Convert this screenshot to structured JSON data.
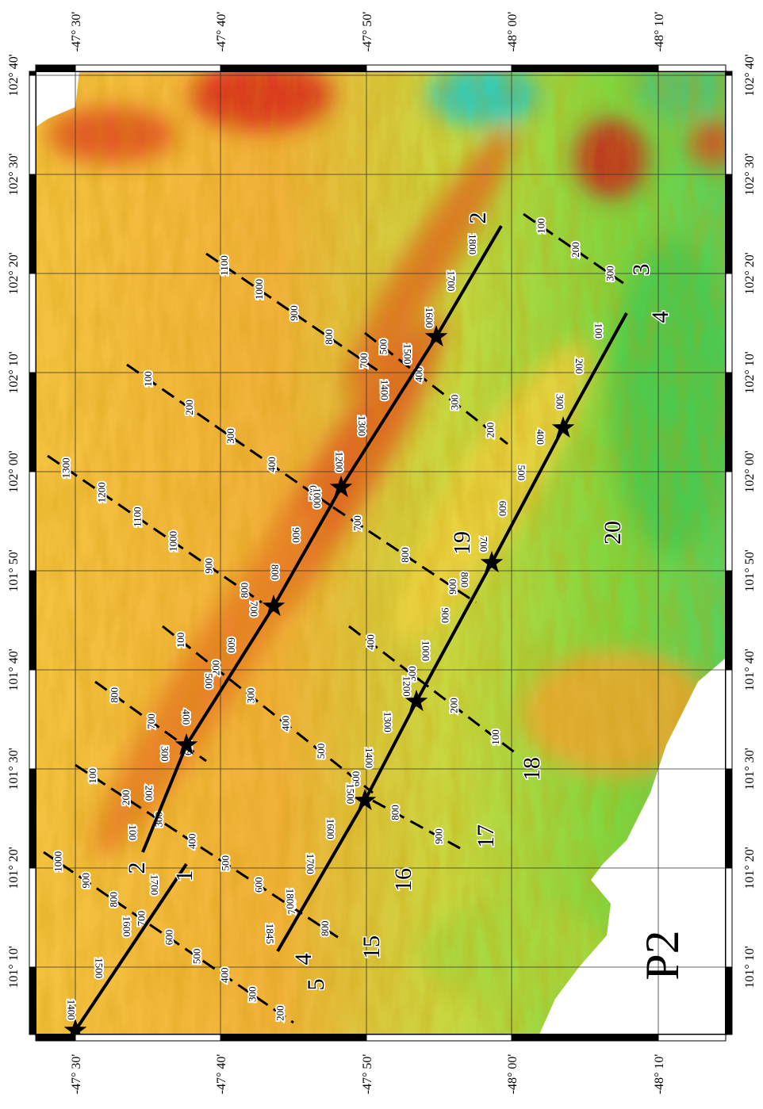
{
  "axes": {
    "top": [
      "-47° 30'",
      "-47° 40'",
      "-47° 50'",
      "-48° 00'",
      "-48° 10'"
    ],
    "bottom": [
      "-47° 30'",
      "-47° 40'",
      "-47° 50'",
      "-48° 00'",
      "-48° 10'"
    ],
    "left": [
      "102° 40'",
      "102° 30'",
      "102° 20'",
      "102° 10'",
      "102° 00'",
      "101° 50'",
      "101° 40'",
      "101° 30'",
      "101° 20'",
      "101° 10'"
    ],
    "right": [
      "102° 40'",
      "102° 30'",
      "102° 20'",
      "102° 10'",
      "102° 00'",
      "101° 50'",
      "101° 40'",
      "101° 30'",
      "101° 20'",
      "101° 10'"
    ]
  },
  "segments": [
    "1",
    "2",
    "4",
    "5",
    "15",
    "16",
    "17",
    "18",
    "19",
    "20",
    "2",
    "3",
    "4"
  ],
  "region_label": "P2",
  "tracks": [
    {
      "labels": [
        "100",
        "200",
        "300",
        "400",
        "500",
        "600",
        "700",
        "800",
        "900",
        "1000",
        "1200",
        "1300",
        "1400",
        "1500",
        "1600",
        "1700",
        "1800"
      ]
    },
    {
      "labels": [
        "1845",
        "1800",
        "1700",
        "1600",
        "1500",
        "1400",
        "1300",
        "1200",
        "1000",
        "900",
        "800",
        "700",
        "600",
        "500",
        "400",
        "300",
        "200",
        "100"
      ]
    },
    {
      "labels": [
        "1400",
        "1500",
        "1600",
        "1700"
      ]
    }
  ],
  "profiles": [
    {
      "labels": [
        "1000",
        "900",
        "800",
        "700",
        "600",
        "500",
        "400",
        "300",
        "200"
      ]
    },
    {
      "labels": [
        "100",
        "200",
        "300",
        "400",
        "500",
        "600",
        "700",
        "800"
      ]
    },
    {
      "labels": [
        "800",
        "700",
        "600"
      ]
    },
    {
      "labels": [
        "100",
        "200",
        "300",
        "400",
        "500",
        "600"
      ]
    },
    {
      "labels": [
        "1300",
        "1200",
        "1100",
        "1000",
        "900",
        "800"
      ]
    },
    {
      "labels": [
        "100",
        "200",
        "300",
        "400",
        "500"
      ]
    },
    {
      "labels": [
        "1100",
        "1000",
        "900",
        "800",
        "700"
      ]
    },
    {
      "labels": [
        "700",
        "800",
        "900"
      ]
    },
    {
      "labels": [
        "500",
        "400",
        "300",
        "200"
      ]
    },
    {
      "labels": [
        "100",
        "200",
        "300"
      ]
    },
    {
      "labels": [
        "400",
        "300",
        "200",
        "100"
      ]
    },
    {
      "labels": [
        "800",
        "900"
      ]
    }
  ]
}
